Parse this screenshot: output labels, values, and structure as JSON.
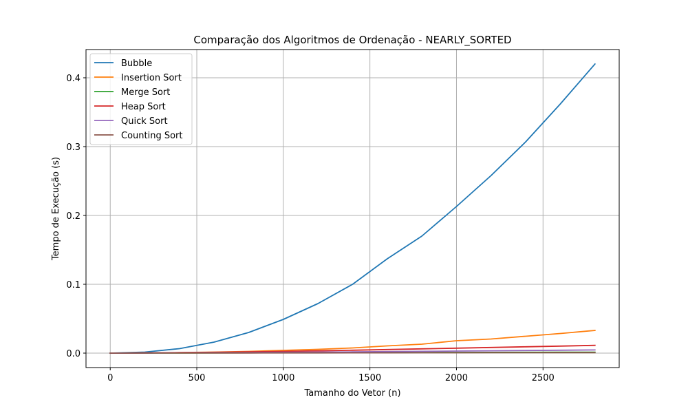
{
  "chart_data": {
    "type": "line",
    "title": "Comparação dos Algoritmos de Ordenação - NEARLY_SORTED",
    "xlabel": "Tamanho do Vetor (n)",
    "ylabel": "Tempo de Execução (s)",
    "xlim": [
      -140,
      2940
    ],
    "ylim": [
      -0.021,
      0.441
    ],
    "xticks": [
      0,
      500,
      1000,
      1500,
      2000,
      2500
    ],
    "yticks": [
      0.0,
      0.1,
      0.2,
      0.3,
      0.4
    ],
    "xtick_labels": [
      "0",
      "500",
      "1000",
      "1500",
      "2000",
      "2500"
    ],
    "ytick_labels": [
      "0.0",
      "0.1",
      "0.2",
      "0.3",
      "0.4"
    ],
    "grid": true,
    "legend_position": "upper-left",
    "x": [
      0,
      200,
      400,
      600,
      800,
      1000,
      1200,
      1400,
      1600,
      1800,
      2000,
      2200,
      2400,
      2600,
      2800
    ],
    "series": [
      {
        "name": "Bubble",
        "color": "#1f77b4",
        "values": [
          0.0,
          0.0015,
          0.0065,
          0.016,
          0.03,
          0.049,
          0.072,
          0.1,
          0.137,
          0.17,
          0.213,
          0.258,
          0.307,
          0.362,
          0.42
        ]
      },
      {
        "name": "Insertion Sort",
        "color": "#ff7f0e",
        "values": [
          0.0,
          0.0003,
          0.0008,
          0.0015,
          0.0025,
          0.004,
          0.0055,
          0.0075,
          0.0105,
          0.013,
          0.018,
          0.0205,
          0.0245,
          0.0285,
          0.033
        ]
      },
      {
        "name": "Merge Sort",
        "color": "#2ca02c",
        "values": [
          0.0,
          0.0001,
          0.0002,
          0.0003,
          0.0004,
          0.0005,
          0.0006,
          0.0007,
          0.0008,
          0.0009,
          0.001,
          0.0011,
          0.0012,
          0.0013,
          0.0014
        ]
      },
      {
        "name": "Heap Sort",
        "color": "#d62728",
        "values": [
          0.0,
          0.0003,
          0.0007,
          0.0012,
          0.0018,
          0.0025,
          0.0033,
          0.0042,
          0.0052,
          0.0062,
          0.0072,
          0.0082,
          0.0092,
          0.0102,
          0.0113
        ]
      },
      {
        "name": "Quick Sort",
        "color": "#9467bd",
        "values": [
          0.0,
          0.0002,
          0.0004,
          0.0006,
          0.0009,
          0.0012,
          0.0015,
          0.0018,
          0.0022,
          0.0026,
          0.003,
          0.0034,
          0.0038,
          0.0042,
          0.0046
        ]
      },
      {
        "name": "Counting Sort",
        "color": "#8c564b",
        "values": [
          0.0,
          0.0001,
          0.0001,
          0.0002,
          0.0002,
          0.0003,
          0.0003,
          0.0004,
          0.0004,
          0.0005,
          0.0005,
          0.0006,
          0.0006,
          0.0007,
          0.0007
        ]
      }
    ]
  }
}
